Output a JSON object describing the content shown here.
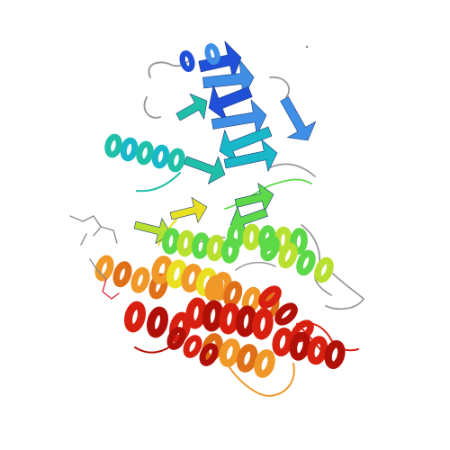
{
  "image": {
    "subject": "protein-ribbon-structure",
    "background": "#ffffff",
    "palette": {
      "blue": "#2050d8",
      "blue_light": "#3f8fe6",
      "cyan": "#18b8c8",
      "teal": "#20c0a8",
      "green": "#5cd848",
      "yellow_green": "#b8e030",
      "yellow": "#e8e020",
      "orange": "#f09828",
      "orange_dark": "#e07018",
      "red": "#d82010",
      "red_dark": "#b01008",
      "loop_gray": "#9a9a9a",
      "ligand_gray": "#8c8c8c",
      "ligand_red": "#e03040"
    }
  }
}
